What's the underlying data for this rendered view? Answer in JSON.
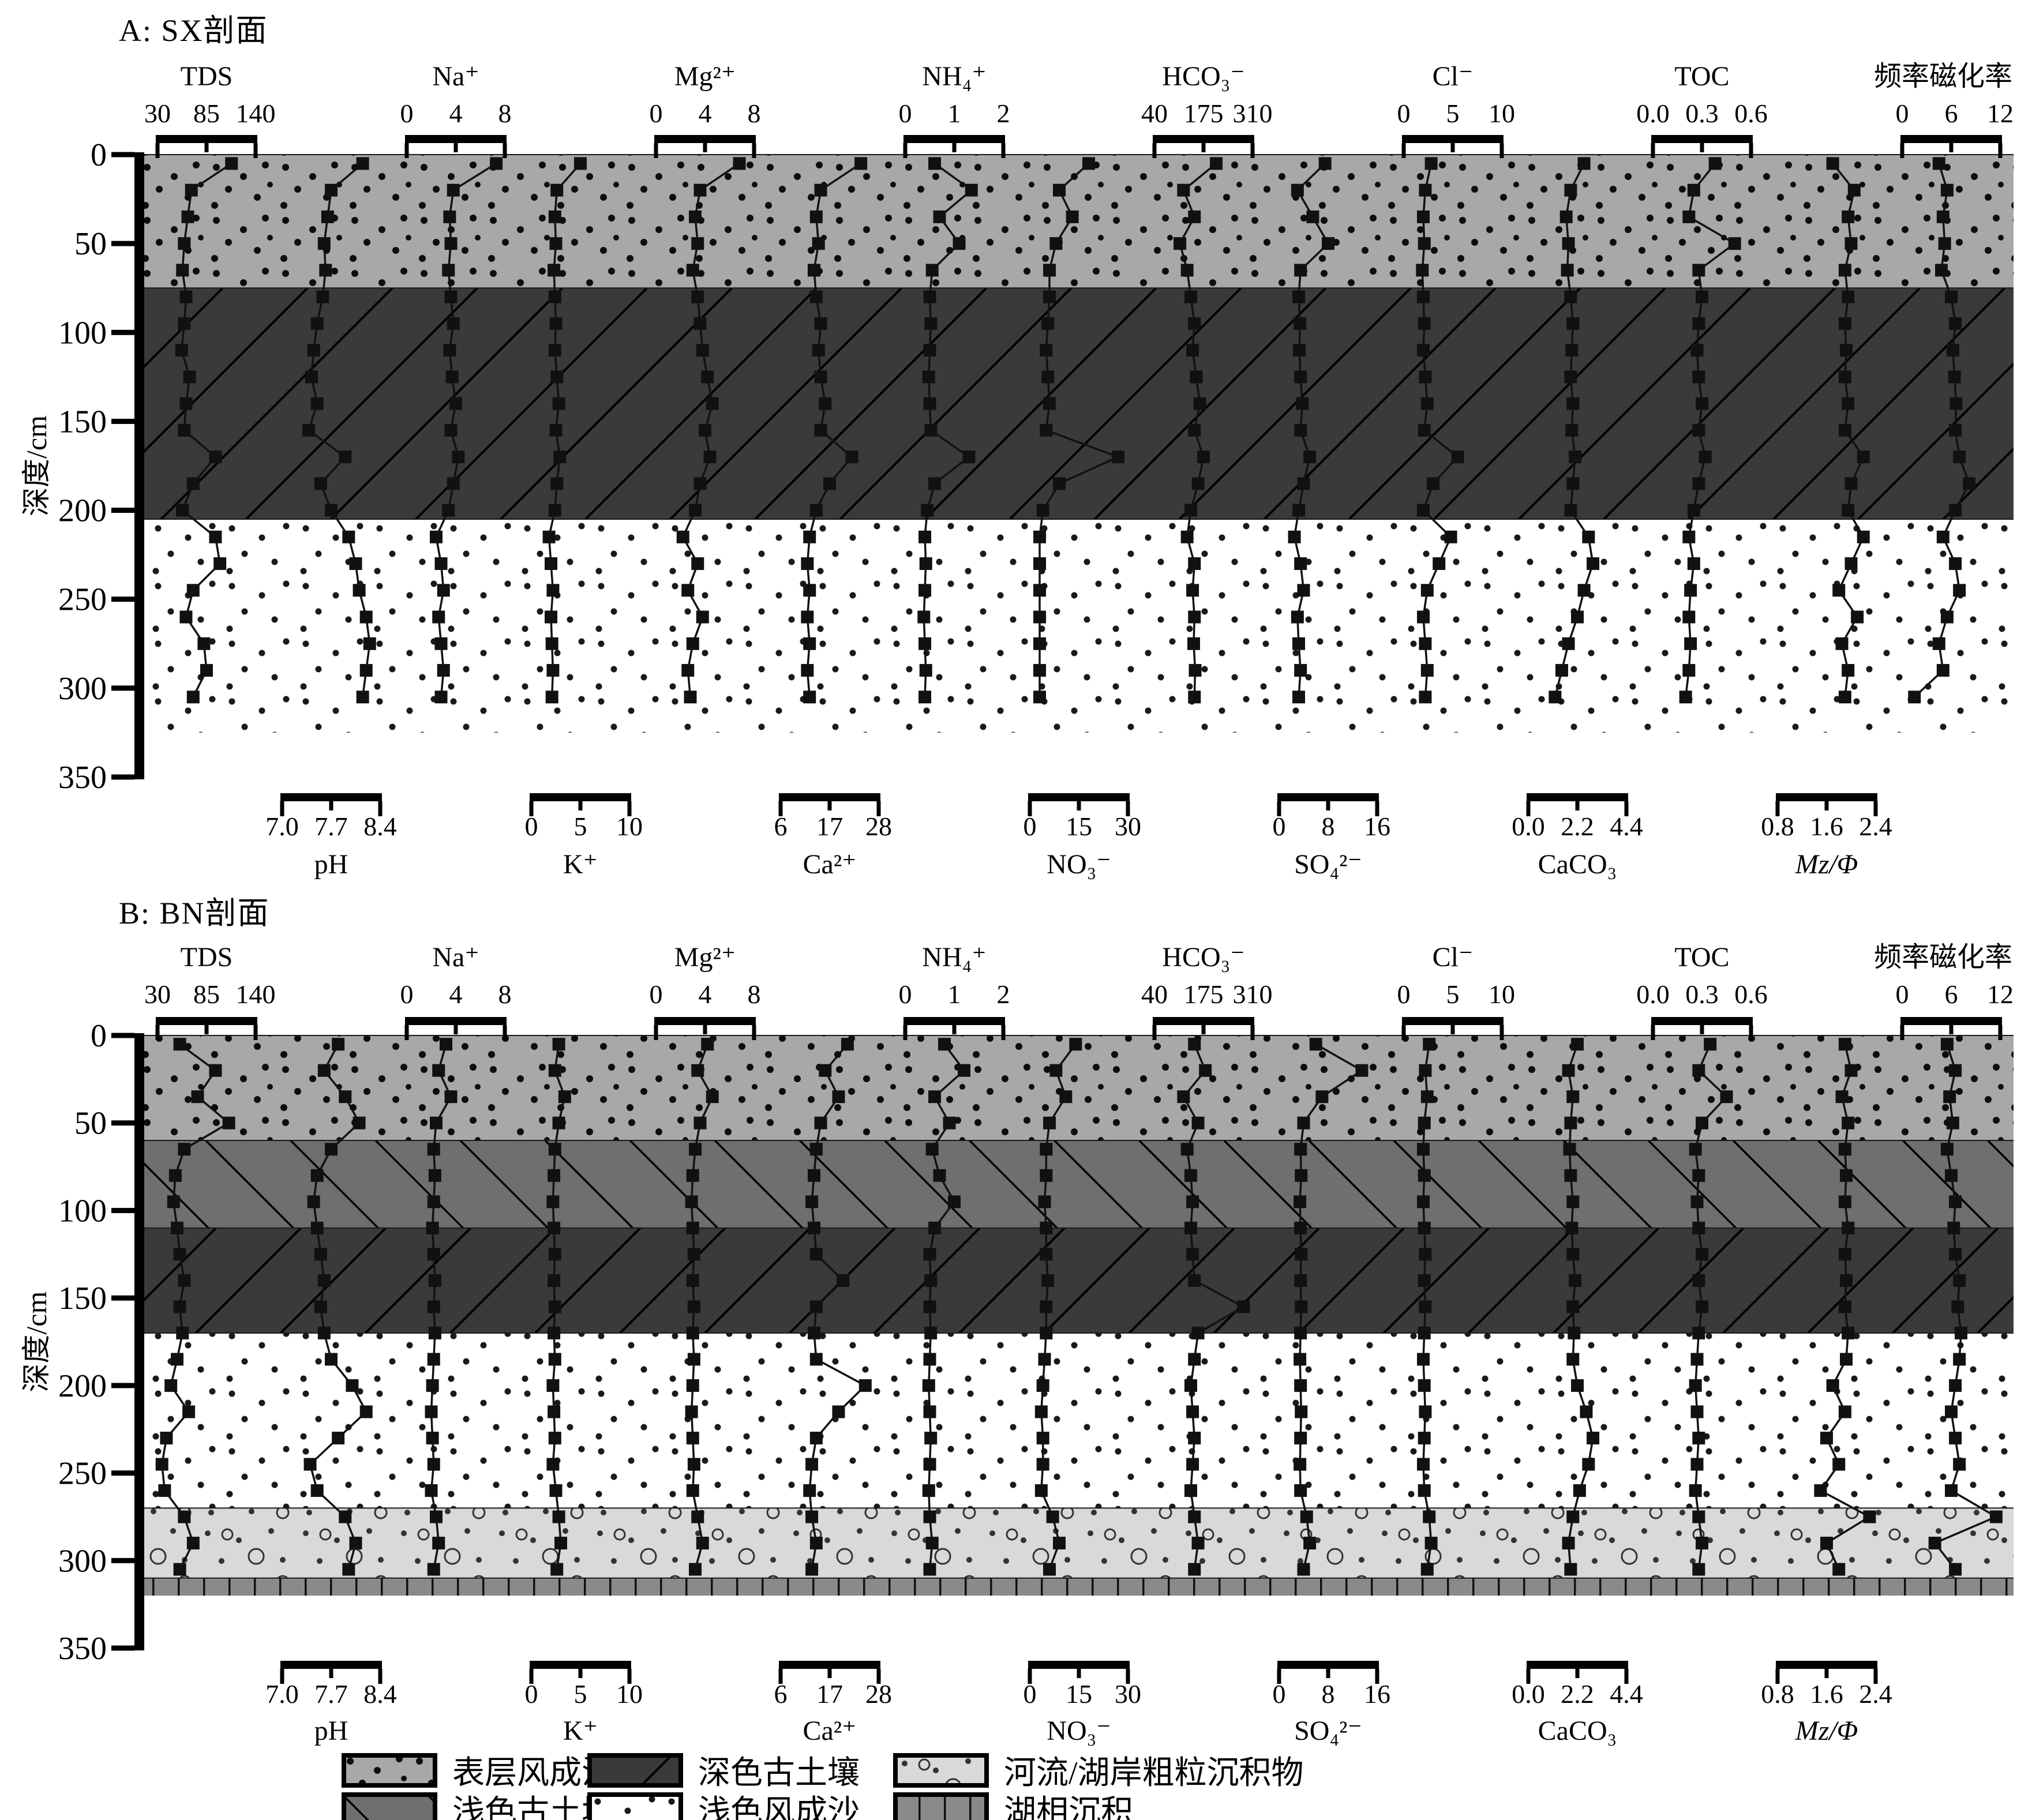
{
  "chart_data": {
    "type": "line",
    "subtype": "multi-proxy-depth-profile",
    "depth_axis": {
      "label": "深度/cm",
      "ticks": [
        0,
        50,
        100,
        150,
        200,
        250,
        300,
        350
      ],
      "range": [
        0,
        350
      ]
    },
    "sample_depths_cm": [
      5,
      20,
      35,
      50,
      65,
      80,
      95,
      110,
      125,
      140,
      155,
      170,
      185,
      200,
      215,
      230,
      245,
      260,
      275,
      290,
      305
    ],
    "columns": [
      {
        "key": "TDS",
        "label": "TDS",
        "scale_pos": "top",
        "ticks": [
          "30",
          "85",
          "140"
        ]
      },
      {
        "key": "pH",
        "label": "pH",
        "scale_pos": "bottom",
        "ticks": [
          "7.0",
          "7.7",
          "8.4"
        ]
      },
      {
        "key": "Na",
        "label": "Na⁺",
        "scale_pos": "top",
        "ticks": [
          "0",
          "4",
          "8"
        ]
      },
      {
        "key": "K",
        "label": "K⁺",
        "scale_pos": "bottom",
        "ticks": [
          "0",
          "5",
          "10"
        ]
      },
      {
        "key": "Mg",
        "label": "Mg²⁺",
        "scale_pos": "top",
        "ticks": [
          "0",
          "4",
          "8"
        ]
      },
      {
        "key": "Ca",
        "label": "Ca²⁺",
        "scale_pos": "bottom",
        "ticks": [
          "6",
          "17",
          "28"
        ]
      },
      {
        "key": "NH4",
        "label": "NH₄⁺",
        "scale_pos": "top",
        "ticks": [
          "0",
          "1",
          "2"
        ]
      },
      {
        "key": "NO3",
        "label": "NO₃⁻",
        "scale_pos": "bottom",
        "ticks": [
          "0",
          "15",
          "30"
        ]
      },
      {
        "key": "HCO3",
        "label": "HCO₃⁻",
        "scale_pos": "top",
        "ticks": [
          "40",
          "175",
          "310"
        ]
      },
      {
        "key": "SO4",
        "label": "SO₄²⁻",
        "scale_pos": "bottom",
        "ticks": [
          "0",
          "8",
          "16"
        ]
      },
      {
        "key": "Cl",
        "label": "Cl⁻",
        "scale_pos": "top",
        "ticks": [
          "0",
          "5",
          "10"
        ]
      },
      {
        "key": "CaCO3",
        "label": "CaCO₃",
        "scale_pos": "bottom",
        "ticks": [
          "0.0",
          "2.2",
          "4.4"
        ]
      },
      {
        "key": "TOC",
        "label": "TOC",
        "scale_pos": "top",
        "ticks": [
          "0.0",
          "0.3",
          "0.6"
        ]
      },
      {
        "key": "Mz",
        "label": "Mz/Φ",
        "scale_pos": "bottom",
        "ticks": [
          "0.8",
          "1.6",
          "2.4"
        ],
        "italic": true
      },
      {
        "key": "XFD",
        "label": "频率磁化率",
        "scale_pos": "top",
        "ticks": [
          "0",
          "6",
          "12"
        ]
      }
    ],
    "panels": [
      {
        "name": "A: SX剖面",
        "short": "SX",
        "strata": [
          {
            "key": "surface_sand",
            "label": "表层风成沙",
            "top_cm": 0,
            "bottom_cm": 75
          },
          {
            "key": "dark_paleosol",
            "label": "深色古土壤",
            "top_cm": 75,
            "bottom_cm": 205
          },
          {
            "key": "light_sand",
            "label": "浅色风成沙",
            "top_cm": 205,
            "bottom_cm": 325
          }
        ],
        "series": {
          "TDS": [
            113,
            68,
            64,
            60,
            58,
            62,
            60,
            57,
            66,
            62,
            60,
            95,
            70,
            58,
            95,
            100,
            70,
            62,
            82,
            85,
            70
          ],
          "pH": [
            8.15,
            7.7,
            7.65,
            7.6,
            7.62,
            7.58,
            7.5,
            7.45,
            7.42,
            7.5,
            7.38,
            7.9,
            7.55,
            7.7,
            7.95,
            8.05,
            8.1,
            8.2,
            8.25,
            8.2,
            8.15
          ],
          "Na": [
            7.3,
            3.8,
            3.5,
            3.6,
            3.4,
            3.6,
            3.8,
            3.5,
            3.7,
            4.0,
            3.6,
            4.2,
            3.8,
            3.4,
            2.4,
            2.8,
            3.0,
            2.6,
            2.8,
            3.0,
            2.8
          ],
          "K": [
            5.0,
            2.6,
            2.4,
            2.5,
            2.3,
            2.4,
            2.5,
            2.4,
            2.6,
            2.8,
            2.5,
            2.9,
            2.6,
            2.4,
            1.8,
            2.0,
            2.2,
            2.0,
            2.1,
            2.2,
            2.1
          ],
          "Mg": [
            6.8,
            3.6,
            3.2,
            3.4,
            3.0,
            3.4,
            3.6,
            3.8,
            4.2,
            4.6,
            4.0,
            4.4,
            3.6,
            3.2,
            2.2,
            3.4,
            2.6,
            3.8,
            3.0,
            2.6,
            2.8
          ],
          "Ca": [
            24,
            15,
            14,
            14.5,
            13.5,
            14,
            15,
            14.5,
            15,
            16,
            15,
            22,
            17,
            14,
            12.5,
            12,
            12.5,
            12,
            12.5,
            12,
            12.5
          ],
          "NH4": [
            0.6,
            1.35,
            0.7,
            1.1,
            0.55,
            0.5,
            0.52,
            0.5,
            0.48,
            0.5,
            0.52,
            1.3,
            0.6,
            0.45,
            0.4,
            0.42,
            0.4,
            0.38,
            0.4,
            0.42,
            0.4
          ],
          "NO3": [
            18,
            9,
            13,
            8,
            6,
            6,
            5.5,
            5,
            5.5,
            6,
            5,
            27,
            9,
            4,
            3,
            3,
            3,
            3,
            3,
            3,
            3
          ],
          "HCO3": [
            210,
            120,
            150,
            110,
            130,
            140,
            150,
            145,
            155,
            165,
            150,
            175,
            160,
            140,
            130,
            150,
            145,
            150,
            148,
            152,
            150
          ],
          "SO4": [
            7.5,
            3,
            5.5,
            8,
            3.5,
            3.2,
            3.4,
            3.3,
            3.5,
            3.8,
            3.5,
            5,
            4,
            3.2,
            2.5,
            3.5,
            4,
            3,
            3.2,
            3.5,
            3.2
          ],
          "Cl": [
            2.8,
            2.2,
            2.0,
            2.1,
            1.9,
            2.0,
            2.1,
            2.0,
            2.2,
            2.4,
            2.1,
            5.5,
            3.0,
            2.0,
            4.8,
            3.6,
            2.4,
            2.0,
            2.2,
            2.4,
            2.2
          ],
          "CaCO3": [
            2.5,
            1.9,
            1.7,
            1.8,
            1.75,
            1.9,
            2.0,
            1.95,
            1.9,
            2.0,
            1.95,
            2.1,
            2.0,
            1.9,
            2.7,
            2.9,
            2.5,
            2.2,
            1.8,
            1.5,
            1.2
          ],
          "TOC": [
            0.38,
            0.25,
            0.22,
            0.5,
            0.28,
            0.3,
            0.28,
            0.27,
            0.28,
            0.3,
            0.28,
            0.32,
            0.28,
            0.25,
            0.22,
            0.25,
            0.23,
            0.22,
            0.23,
            0.22,
            0.2
          ],
          "Mz": [
            1.7,
            2.05,
            1.95,
            2.0,
            1.9,
            1.95,
            1.9,
            1.92,
            1.9,
            1.95,
            1.9,
            2.2,
            2.0,
            1.95,
            2.2,
            2.0,
            1.8,
            2.1,
            1.85,
            1.95,
            1.9
          ],
          "XFD": [
            4.5,
            5.5,
            5.0,
            5.2,
            4.8,
            6.0,
            6.5,
            6.2,
            6.4,
            6.6,
            6.5,
            7.0,
            8.2,
            6.5,
            5.0,
            6.5,
            7.0,
            5.5,
            4.5,
            5.0,
            1.5
          ]
        }
      },
      {
        "name": "B: BN剖面",
        "short": "BN",
        "strata": [
          {
            "key": "surface_sand",
            "label": "表层风成沙",
            "top_cm": 0,
            "bottom_cm": 60
          },
          {
            "key": "light_paleosol",
            "label": "浅色古土壤",
            "top_cm": 60,
            "bottom_cm": 110
          },
          {
            "key": "dark_paleosol",
            "label": "深色古土壤",
            "top_cm": 110,
            "bottom_cm": 170
          },
          {
            "key": "light_sand",
            "label": "浅色风成沙",
            "top_cm": 170,
            "bottom_cm": 270
          },
          {
            "key": "coarse",
            "label": "河流/湖岸粗粒沉积物",
            "top_cm": 270,
            "bottom_cm": 310
          },
          {
            "key": "lacustrine",
            "label": "湖相沉积",
            "top_cm": 310,
            "bottom_cm": 320
          }
        ],
        "series": {
          "TDS": [
            55,
            95,
            75,
            110,
            60,
            50,
            48,
            52,
            55,
            60,
            55,
            58,
            52,
            45,
            65,
            40,
            35,
            38,
            60,
            70,
            55
          ],
          "pH": [
            7.8,
            7.6,
            7.9,
            8.1,
            7.7,
            7.5,
            7.45,
            7.5,
            7.55,
            7.6,
            7.55,
            7.6,
            7.7,
            8.0,
            8.2,
            7.8,
            7.4,
            7.5,
            7.9,
            8.05,
            7.95
          ],
          "Na": [
            3.2,
            2.6,
            3.6,
            2.4,
            2.2,
            2.3,
            2.2,
            2.1,
            2.2,
            2.3,
            2.2,
            2.3,
            2.2,
            2.1,
            2.0,
            2.1,
            2.2,
            2.0,
            2.4,
            2.6,
            2.2
          ],
          "K": [
            2.8,
            2.4,
            3.4,
            2.8,
            2.4,
            2.3,
            2.2,
            2.3,
            2.4,
            2.3,
            2.4,
            2.3,
            2.4,
            2.2,
            2.3,
            2.4,
            2.2,
            2.5,
            2.8,
            3.0,
            2.6
          ],
          "Mg": [
            4.2,
            3.4,
            4.6,
            3.6,
            3.2,
            3.0,
            2.9,
            3.0,
            3.1,
            3.0,
            3.1,
            3.0,
            3.1,
            3.0,
            2.9,
            3.0,
            3.1,
            3.0,
            3.4,
            3.8,
            3.2
          ],
          "Ca": [
            21,
            16,
            19,
            15,
            14,
            13.5,
            13,
            13.5,
            14,
            20,
            14,
            13.5,
            14,
            25,
            19,
            14,
            13,
            12.5,
            13,
            14,
            13
          ],
          "NH4": [
            0.8,
            1.2,
            0.6,
            0.9,
            0.55,
            0.7,
            1.0,
            0.6,
            0.5,
            0.52,
            0.5,
            0.52,
            0.5,
            0.48,
            0.5,
            0.52,
            0.5,
            0.48,
            0.5,
            0.55,
            0.5
          ],
          "NO3": [
            14,
            8,
            11,
            6,
            5,
            5,
            4.5,
            5,
            5,
            5.5,
            5,
            5,
            4.5,
            4,
            3.5,
            4,
            4,
            3.5,
            7,
            9,
            6
          ],
          "HCO3": [
            150,
            180,
            120,
            160,
            130,
            140,
            145,
            140,
            145,
            150,
            285,
            160,
            150,
            140,
            145,
            150,
            145,
            140,
            150,
            160,
            150
          ],
          "SO4": [
            6,
            13.5,
            7,
            4,
            3.5,
            3.6,
            3.4,
            3.5,
            3.6,
            3.5,
            3.6,
            3.5,
            3.4,
            3.5,
            3.6,
            3.5,
            3.4,
            3.5,
            4.5,
            5,
            4
          ],
          "Cl": [
            2.6,
            2.2,
            2.4,
            2.1,
            2.0,
            2.1,
            2.0,
            2.1,
            2.2,
            2.1,
            2.2,
            2.1,
            2.0,
            2.1,
            2.2,
            2.1,
            2.0,
            2.1,
            2.6,
            2.8,
            2.4
          ],
          "CaCO3": [
            2.2,
            1.8,
            2.0,
            1.9,
            1.85,
            1.9,
            2.0,
            1.95,
            2.0,
            2.1,
            2.0,
            2.05,
            2.0,
            2.2,
            2.6,
            2.9,
            2.7,
            2.3,
            2.0,
            1.8,
            1.9
          ],
          "TOC": [
            0.35,
            0.28,
            0.45,
            0.3,
            0.26,
            0.28,
            0.27,
            0.28,
            0.3,
            0.28,
            0.3,
            0.28,
            0.27,
            0.26,
            0.27,
            0.28,
            0.27,
            0.26,
            0.28,
            0.3,
            0.28
          ],
          "Mz": [
            1.9,
            2.0,
            1.85,
            1.95,
            1.9,
            1.92,
            1.9,
            1.95,
            1.9,
            1.92,
            1.9,
            1.95,
            1.92,
            1.7,
            1.9,
            1.6,
            1.8,
            1.5,
            2.3,
            1.6,
            1.8
          ],
          "XFD": [
            5.5,
            6.5,
            5.8,
            6.2,
            5.5,
            6.0,
            6.5,
            6.3,
            6.5,
            7.0,
            6.8,
            7.2,
            7.0,
            6.5,
            6.0,
            6.5,
            7.0,
            6.0,
            11.5,
            4.0,
            6.5
          ]
        }
      }
    ],
    "legend": [
      {
        "key": "surface_sand",
        "label": "表层风成沙"
      },
      {
        "key": "dark_paleosol",
        "label": "深色古土壤"
      },
      {
        "key": "coarse",
        "label": "河流/湖岸粗粒沉积物"
      },
      {
        "key": "light_paleosol",
        "label": "浅色古土壤"
      },
      {
        "key": "light_sand",
        "label": "浅色风成沙"
      },
      {
        "key": "lacustrine",
        "label": "湖相沉积"
      }
    ],
    "colors": {
      "ink": "#000000",
      "marker": "#111111",
      "surface_sand": "#a8a8a8",
      "dark_paleosol": "#3a3a3a",
      "light_paleosol": "#6f6f6f",
      "light_sand": "#ffffff",
      "coarse": "#d9d9d9",
      "lacustrine": "#8a8a8a"
    }
  }
}
